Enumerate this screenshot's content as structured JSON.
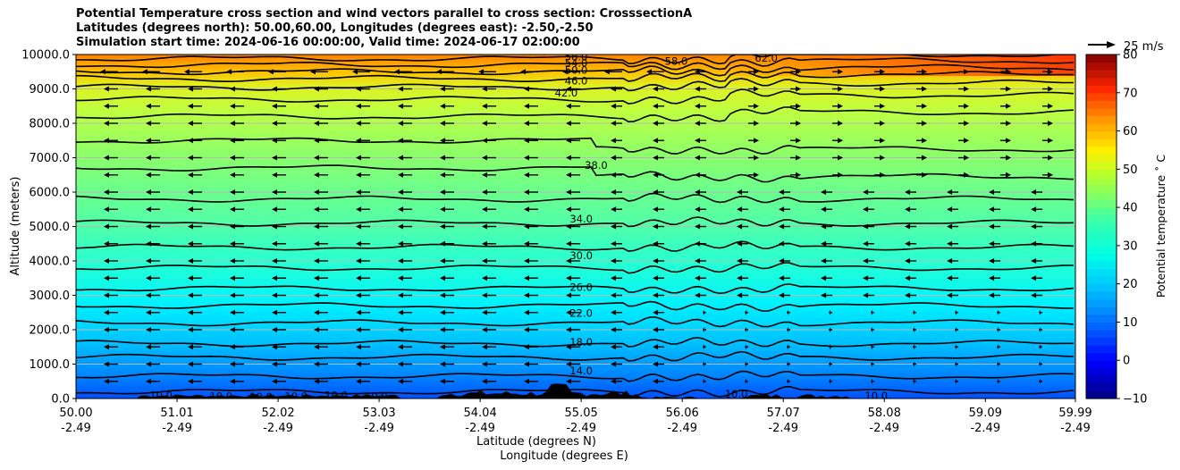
{
  "titles": {
    "line1": "Potential Temperature cross section and wind vectors parallel to cross section: CrosssectionA",
    "line2": "Latitudes (degrees north): 50.00,60.00, Longitudes (degrees east): -2.50,-2.50",
    "line3": "Simulation start time: 2024-06-16 00:00:00, Valid time: 2024-06-17 02:00:00"
  },
  "wind_key": {
    "label": "25 m/s"
  },
  "chart_data": {
    "type": "contourf",
    "ylabel": "Altitude (meters)",
    "xlabel": "Latitude (degrees N)",
    "xlabel2": "Longitude (degrees E)",
    "ylim": [
      0,
      10000
    ],
    "yticks": [
      "0.0",
      "1000.0",
      "2000.0",
      "3000.0",
      "4000.0",
      "5000.0",
      "6000.0",
      "7000.0",
      "8000.0",
      "9000.0",
      "10000.0"
    ],
    "ytick_values": [
      0,
      1000,
      2000,
      3000,
      4000,
      5000,
      6000,
      7000,
      8000,
      9000,
      10000
    ],
    "xlim": [
      50.0,
      59.99
    ],
    "xticks_lat": [
      "50.00",
      "51.01",
      "52.02",
      "53.03",
      "54.04",
      "55.05",
      "56.06",
      "57.07",
      "58.08",
      "59.09",
      "59.99"
    ],
    "xtick_values": [
      50.0,
      51.01,
      52.02,
      53.03,
      54.04,
      55.05,
      56.06,
      57.07,
      58.08,
      59.09,
      59.99
    ],
    "xticks_lon": [
      "-2.49",
      "-2.49",
      "-2.49",
      "-2.49",
      "-2.49",
      "-2.49",
      "-2.49",
      "-2.49",
      "-2.49",
      "-2.49",
      "-2.49"
    ],
    "grid": "horizontal",
    "colorbar": {
      "label": "Potential temperature ˚ C",
      "range": [
        -10,
        80
      ],
      "ticks": [
        "−10",
        "0",
        "10",
        "20",
        "30",
        "40",
        "50",
        "60",
        "70",
        "80"
      ],
      "tick_values": [
        -10,
        0,
        10,
        20,
        30,
        40,
        50,
        60,
        70,
        80
      ]
    },
    "contour_labels": [
      {
        "text": "10.0",
        "lat": 50.85,
        "alt": 90
      },
      {
        "text": "10.0",
        "lat": 51.45,
        "alt": 60
      },
      {
        "text": "10.0",
        "lat": 51.85,
        "alt": 50
      },
      {
        "text": "10.0",
        "lat": 52.2,
        "alt": 60
      },
      {
        "text": "10.0",
        "lat": 52.6,
        "alt": 90
      },
      {
        "text": "10.0",
        "lat": 53.0,
        "alt": 60
      },
      {
        "text": "10.0",
        "lat": 56.6,
        "alt": 130
      },
      {
        "text": "10.0",
        "lat": 58.0,
        "alt": 80
      },
      {
        "text": "14.0",
        "lat": 55.05,
        "alt": 800
      },
      {
        "text": "18.0",
        "lat": 55.05,
        "alt": 1630
      },
      {
        "text": "22.0",
        "lat": 55.05,
        "alt": 2480
      },
      {
        "text": "26.0",
        "lat": 55.05,
        "alt": 3240
      },
      {
        "text": "30.0",
        "lat": 55.05,
        "alt": 4160
      },
      {
        "text": "34.0",
        "lat": 55.05,
        "alt": 5220
      },
      {
        "text": "38.0",
        "lat": 55.2,
        "alt": 6780
      },
      {
        "text": "42.0",
        "lat": 54.9,
        "alt": 8880
      },
      {
        "text": "46.0",
        "lat": 55.0,
        "alt": 9240
      },
      {
        "text": "50.0",
        "lat": 55.0,
        "alt": 9540
      },
      {
        "text": "54.0",
        "lat": 55.0,
        "alt": 9750
      },
      {
        "text": "58.0",
        "lat": 55.0,
        "alt": 9930
      },
      {
        "text": "58.0",
        "lat": 56.0,
        "alt": 9800
      },
      {
        "text": "62.0",
        "lat": 56.9,
        "alt": 9900
      }
    ],
    "wind_vectors": "leftward (southward) flow over most of the section, rightward (northward) flow aloft beyond 56.5 N"
  }
}
